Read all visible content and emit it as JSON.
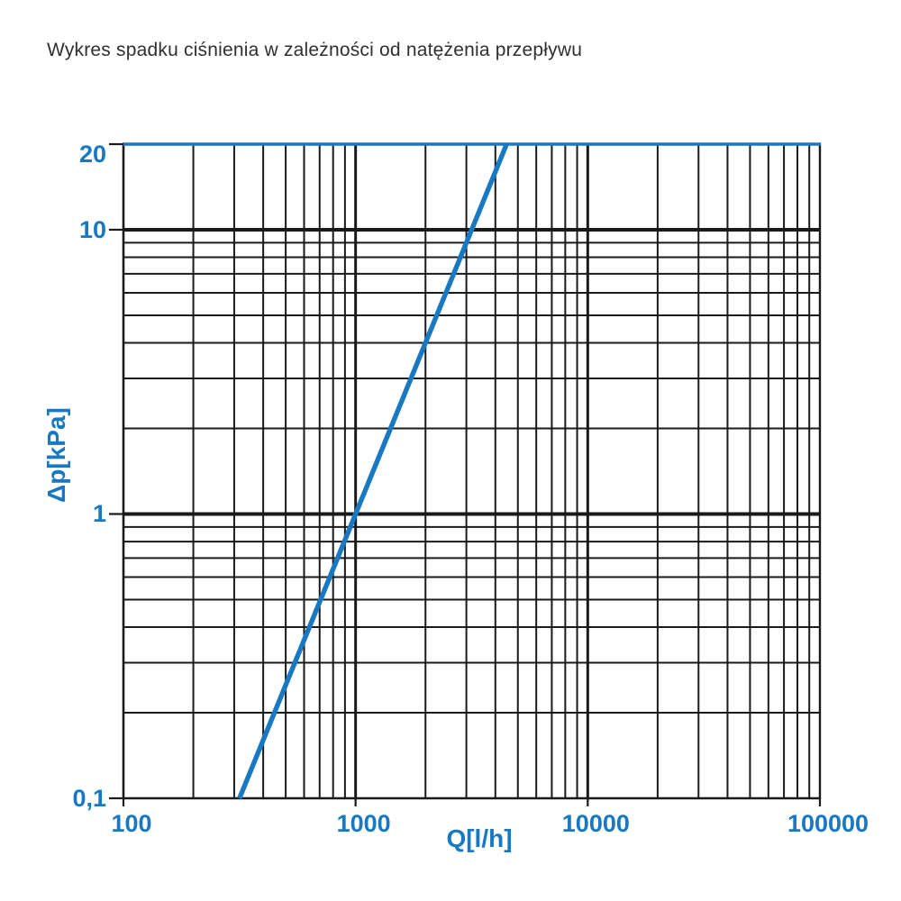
{
  "page": {
    "background": "#ffffff"
  },
  "chart_data": {
    "type": "line",
    "title": "Wykres spadku ciśnienia w zależności od natężenia przepływu",
    "xlabel": "Q[l/h]",
    "ylabel": "Δp[kPa]",
    "x_scale": "log",
    "y_scale": "log",
    "xlim": [
      100,
      100000
    ],
    "ylim": [
      0.1,
      20
    ],
    "grid": true,
    "legend": false,
    "x_ticks": [
      {
        "value": 100,
        "label": "100"
      },
      {
        "value": 1000,
        "label": "1000"
      },
      {
        "value": 10000,
        "label": "10000"
      },
      {
        "value": 100000,
        "label": "100000"
      }
    ],
    "y_ticks": [
      {
        "value": 20,
        "label": "20"
      },
      {
        "value": 10,
        "label": "10"
      },
      {
        "value": 1,
        "label": "1"
      },
      {
        "value": 0.1,
        "label": "0,1"
      }
    ],
    "x_minor_gridlines": [
      200,
      300,
      400,
      500,
      600,
      700,
      800,
      900,
      2000,
      3000,
      4000,
      5000,
      6000,
      7000,
      8000,
      9000,
      20000,
      30000,
      40000,
      50000,
      60000,
      70000,
      80000,
      90000
    ],
    "x_major_gridlines": [
      1000,
      10000
    ],
    "y_minor_gridlines": [
      0.2,
      0.3,
      0.4,
      0.5,
      0.6,
      0.7,
      0.8,
      0.9,
      2,
      3,
      4,
      5,
      6,
      7,
      8,
      9
    ],
    "y_major_gridlines": [
      1,
      10
    ],
    "colors": {
      "accent_blue": "#1878c2",
      "grid_black": "#1a1a1a",
      "title_text": "#303030"
    },
    "series": [
      {
        "color": "#1878c2",
        "points": [
          [
            316,
            0.1
          ],
          [
            1000,
            1
          ],
          [
            4472,
            20
          ]
        ]
      }
    ]
  }
}
